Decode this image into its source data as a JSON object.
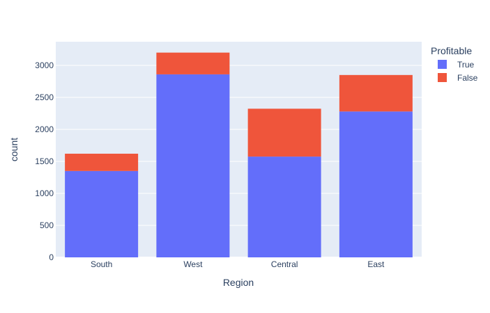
{
  "chart_data": {
    "type": "bar",
    "barmode": "stack",
    "categories": [
      "South",
      "West",
      "Central",
      "East"
    ],
    "series": [
      {
        "name": "True",
        "values": [
          1350,
          2860,
          1575,
          2280
        ],
        "color": "#636efa"
      },
      {
        "name": "False",
        "values": [
          270,
          340,
          748,
          570
        ],
        "color": "#ef553b"
      }
    ],
    "xlabel": "Region",
    "ylabel": "count",
    "ylim": [
      0,
      3370
    ],
    "yticks": [
      0,
      500,
      1000,
      1500,
      2000,
      2500,
      3000
    ],
    "ytick_labels": [
      "0",
      "500",
      "1000",
      "1500",
      "2000",
      "2500",
      "3000"
    ],
    "grid": true,
    "legend": {
      "title": "Profitable",
      "position": "top-right"
    },
    "colors": {
      "plot_background": "#e5ecf6",
      "grid": "#ffffff",
      "text": "#2a3f5f"
    }
  }
}
